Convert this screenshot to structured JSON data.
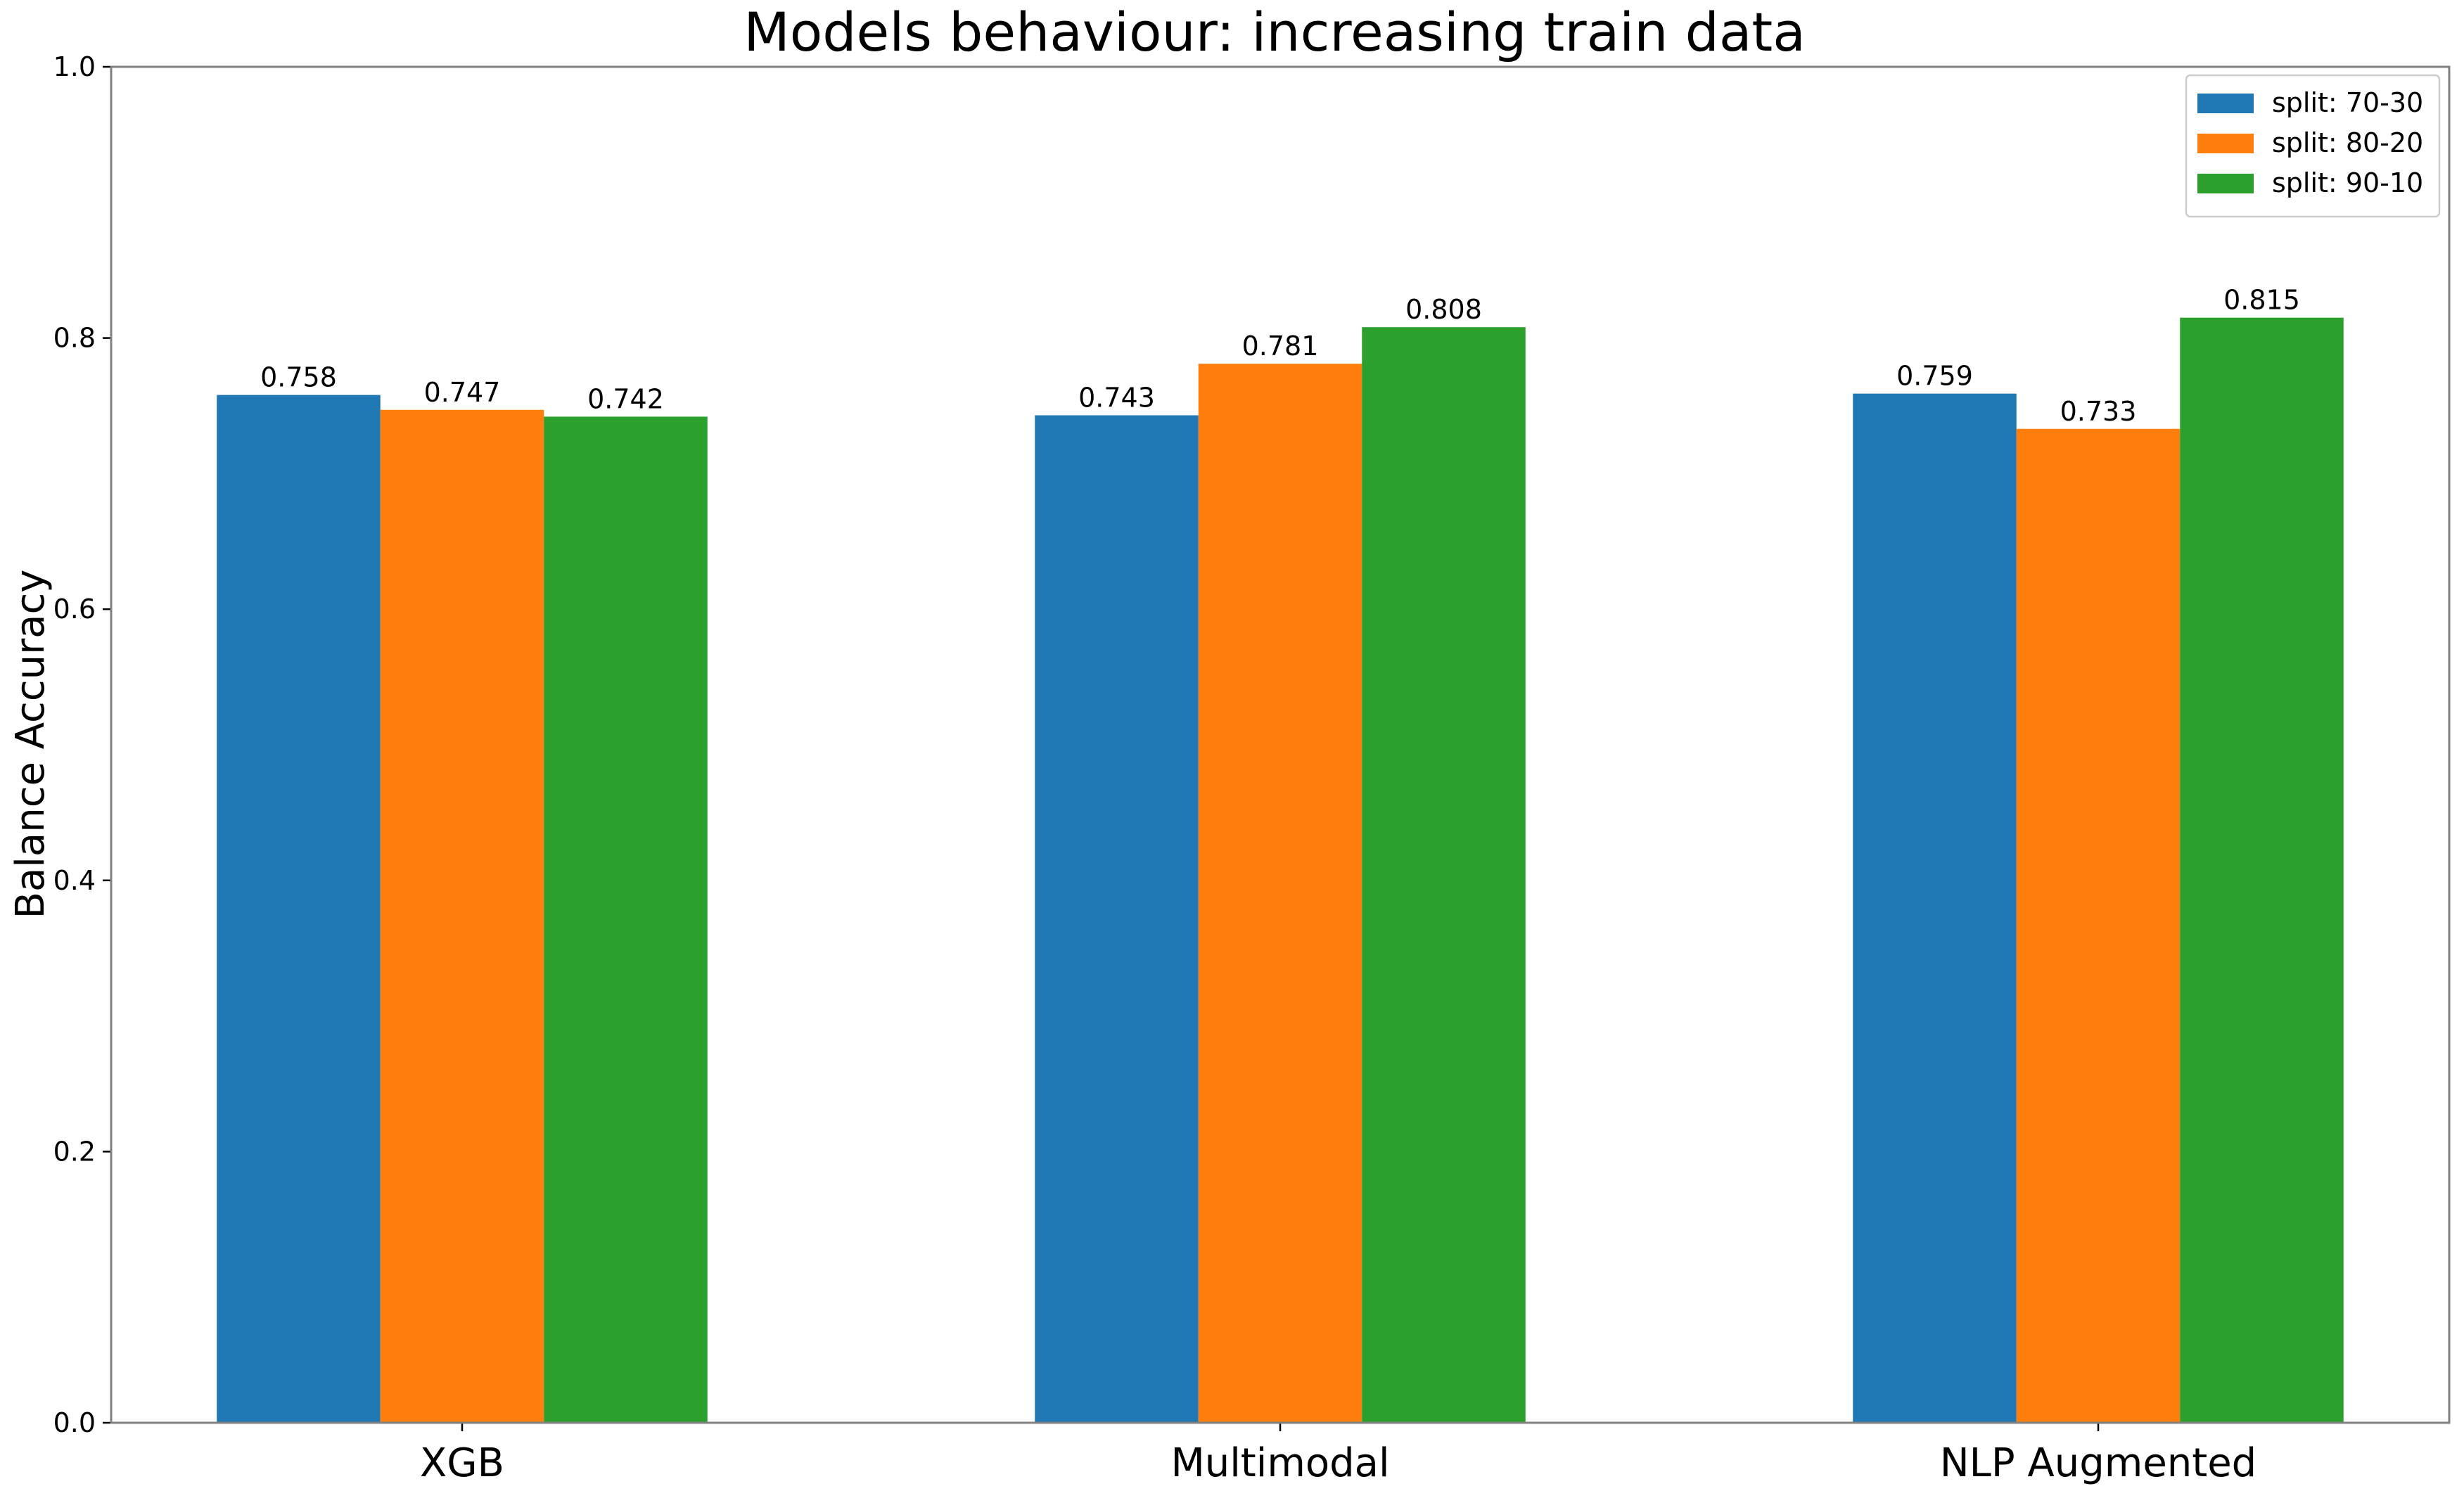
{
  "chart_data": {
    "type": "bar",
    "title": "Models behaviour: increasing train data",
    "xlabel": "",
    "ylabel": "Balance Accuracy",
    "ylim": [
      0.0,
      1.0
    ],
    "yticks": [
      "0.0",
      "0.2",
      "0.4",
      "0.6",
      "0.8",
      "1.0"
    ],
    "categories": [
      "XGB",
      "Multimodal",
      "NLP Augmented"
    ],
    "series": [
      {
        "name": "split: 70-30",
        "color": "#1f77b4",
        "values": [
          0.758,
          0.743,
          0.759
        ],
        "labels": [
          "0.758",
          "0.743",
          "0.759"
        ]
      },
      {
        "name": "split: 80-20",
        "color": "#ff7f0e",
        "values": [
          0.747,
          0.781,
          0.733
        ],
        "labels": [
          "0.747",
          "0.781",
          "0.733"
        ]
      },
      {
        "name": "split: 90-10",
        "color": "#2ca02c",
        "values": [
          0.742,
          0.808,
          0.815
        ],
        "labels": [
          "0.742",
          "0.808",
          "0.815"
        ]
      }
    ],
    "legend": "top-right",
    "grid": false
  }
}
